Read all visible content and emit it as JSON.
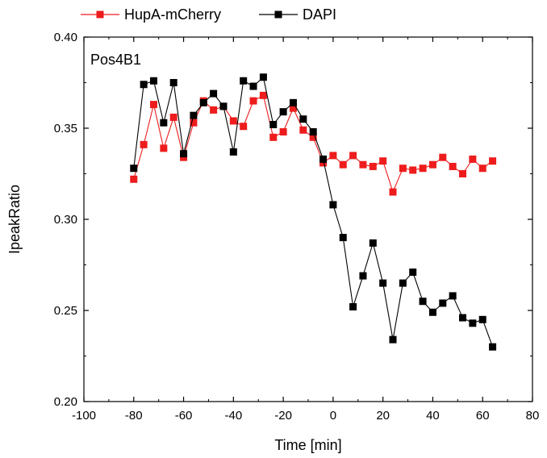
{
  "chart_data": {
    "type": "line",
    "title": "",
    "annotation": "Pos4B1",
    "xlabel": "Time [min]",
    "ylabel": "IpeakRatio",
    "xlim": [
      -100,
      80
    ],
    "ylim": [
      0.2,
      0.4
    ],
    "xticks": [
      -100,
      -80,
      -60,
      -40,
      -20,
      0,
      20,
      40,
      60,
      80
    ],
    "xtick_labels": [
      "-100",
      "-80",
      "-60",
      "-40",
      "-20",
      "0",
      "20",
      "40",
      "60",
      "80"
    ],
    "yticks": [
      0.2,
      0.25,
      0.3,
      0.35,
      0.4
    ],
    "ytick_labels": [
      "0.20",
      "0.25",
      "0.30",
      "0.35",
      "0.40"
    ],
    "grid": false,
    "legend_position": "top",
    "x": [
      -80,
      -76,
      -72,
      -68,
      -64,
      -60,
      -56,
      -52,
      -48,
      -44,
      -40,
      -36,
      -32,
      -28,
      -24,
      -20,
      -16,
      -12,
      -8,
      -4,
      0,
      4,
      8,
      12,
      16,
      20,
      24,
      28,
      32,
      36,
      40,
      44,
      48,
      52,
      56,
      60,
      64
    ],
    "series": [
      {
        "name": "HupA-mCherry",
        "color": "#ee1c1c",
        "marker": "square",
        "values": [
          0.322,
          0.341,
          0.363,
          0.339,
          0.356,
          0.334,
          0.353,
          0.365,
          0.36,
          0.362,
          0.354,
          0.351,
          0.365,
          0.368,
          0.345,
          0.348,
          0.361,
          0.349,
          0.345,
          0.331,
          0.335,
          0.33,
          0.335,
          0.33,
          0.329,
          0.332,
          0.315,
          0.328,
          0.327,
          0.328,
          0.33,
          0.334,
          0.329,
          0.325,
          0.333,
          0.328,
          0.332
        ]
      },
      {
        "name": "DAPI",
        "color": "#000000",
        "marker": "square",
        "values": [
          0.328,
          0.374,
          0.376,
          0.353,
          0.375,
          0.336,
          0.357,
          0.364,
          0.369,
          0.362,
          0.337,
          0.376,
          0.373,
          0.378,
          0.352,
          0.359,
          0.364,
          0.355,
          0.348,
          0.333,
          0.308,
          0.29,
          0.252,
          0.269,
          0.287,
          0.265,
          0.234,
          0.265,
          0.271,
          0.255,
          0.249,
          0.254,
          0.258,
          0.246,
          0.243,
          0.245,
          0.23
        ]
      }
    ]
  }
}
